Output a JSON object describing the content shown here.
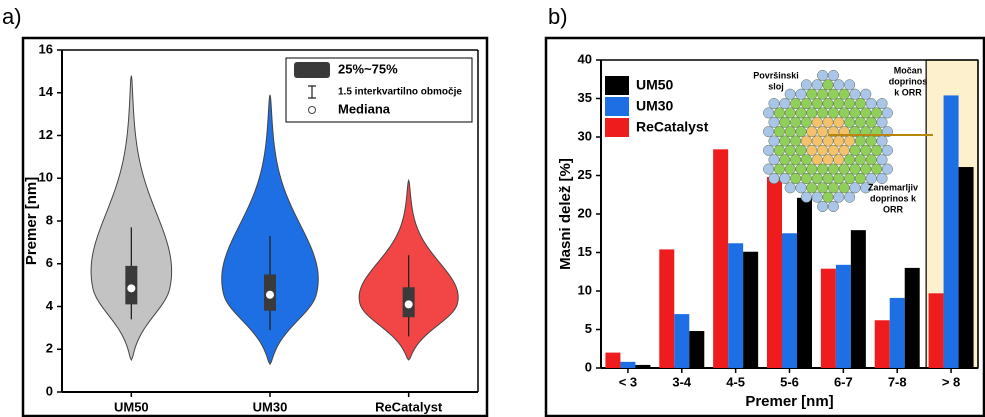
{
  "chart_data": [
    {
      "type": "violin",
      "panel_label": "a)",
      "y_label": "Premer [nm]",
      "categories": [
        "UM50",
        "UM30",
        "ReCatalyst"
      ],
      "stats": [
        {
          "color": "#c3c3c3",
          "min": 1.5,
          "whisker_low": 3.4,
          "q1": 4.1,
          "median": 4.85,
          "q3": 5.9,
          "whisker_high": 7.7,
          "max": 14.8
        },
        {
          "color": "#1e6fe3",
          "min": 1.3,
          "whisker_low": 2.9,
          "q1": 3.8,
          "median": 4.55,
          "q3": 5.5,
          "whisker_high": 7.3,
          "max": 13.9
        },
        {
          "color": "#f24545",
          "min": 1.5,
          "whisker_low": 2.6,
          "q1": 3.5,
          "median": 4.1,
          "q3": 4.9,
          "whisker_high": 6.4,
          "max": 9.9
        }
      ],
      "ylim": [
        0,
        16
      ],
      "yticks": [
        0,
        2,
        4,
        6,
        8,
        10,
        12,
        14,
        16
      ],
      "legend_items": [
        "25%~75%",
        "1.5 interkvartilno območje",
        "Mediana"
      ],
      "legend": "upper right"
    },
    {
      "type": "bar",
      "panel_label": "b)",
      "x_label": "Premer [nm]",
      "y_label": "Masni delež [%]",
      "categories": [
        "< 3",
        "3-4",
        "4-5",
        "5-6",
        "6-7",
        "7-8",
        "> 8"
      ],
      "series": [
        {
          "name": "ReCatalyst",
          "color": "#ee1c1c",
          "values": [
            2.0,
            15.4,
            28.4,
            24.8,
            12.9,
            6.2,
            9.7
          ]
        },
        {
          "name": "UM30",
          "color": "#1e6fe3",
          "values": [
            0.8,
            7.0,
            16.2,
            17.5,
            13.4,
            9.1,
            35.4
          ]
        },
        {
          "name": "UM50",
          "color": "#000000",
          "values": [
            0.4,
            4.8,
            15.1,
            22.1,
            17.9,
            13.0,
            26.1
          ]
        }
      ],
      "ylim": [
        0,
        40
      ],
      "yticks": [
        0,
        5,
        10,
        15,
        20,
        25,
        30,
        35,
        40
      ],
      "legend": "upper left",
      "highlight_index": 6,
      "highlight_color": "#fdf0cc",
      "annotations": [
        [
          "Površinski",
          "sloj"
        ],
        [
          "Močan",
          "doprinos",
          "k ORR"
        ],
        [
          "Zanemarljiv",
          "doprinos k",
          "ORR"
        ]
      ]
    }
  ]
}
